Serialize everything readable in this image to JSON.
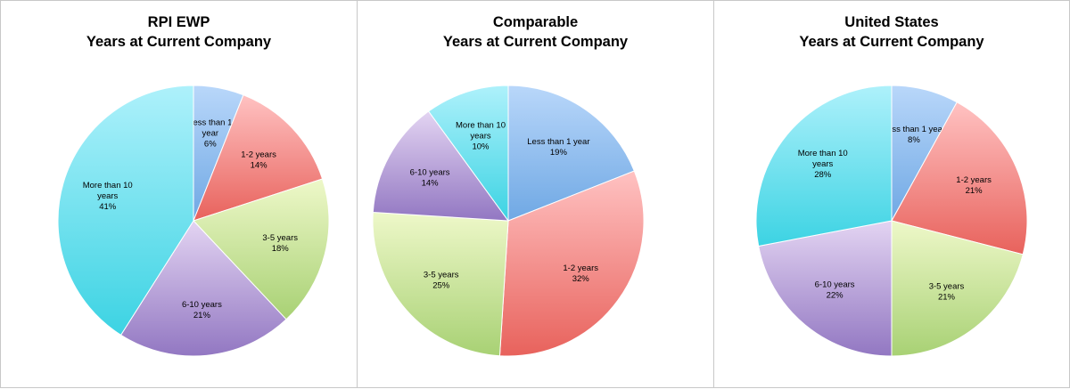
{
  "colors": {
    "less_than_1": [
      "#b9d7fa",
      "#6fa8e4"
    ],
    "y1_2": [
      "#ffc2c2",
      "#e8625c"
    ],
    "y3_5": [
      "#eef8c9",
      "#a8d174"
    ],
    "y6_10": [
      "#e3d4f2",
      "#9277c2"
    ],
    "more_than_10": [
      "#aef1fb",
      "#3cd3e3"
    ]
  },
  "chart_data": [
    {
      "type": "pie",
      "title": [
        "RPI EWP",
        "Years at Current Company"
      ],
      "slices": [
        {
          "key": "less_than_1",
          "label": [
            "Less than 1",
            "year"
          ],
          "pct_label": "6%",
          "value": 6
        },
        {
          "key": "y1_2",
          "label": [
            "1-2 years"
          ],
          "pct_label": "14%",
          "value": 14
        },
        {
          "key": "y3_5",
          "label": [
            "3-5 years"
          ],
          "pct_label": "18%",
          "value": 18
        },
        {
          "key": "y6_10",
          "label": [
            "6-10 years"
          ],
          "pct_label": "21%",
          "value": 21
        },
        {
          "key": "more_than_10",
          "label": [
            "More than 10",
            "years"
          ],
          "pct_label": "41%",
          "value": 41
        }
      ]
    },
    {
      "type": "pie",
      "title": [
        "Comparable",
        "Years at Current Company"
      ],
      "slices": [
        {
          "key": "less_than_1",
          "label": [
            "Less than 1 year"
          ],
          "pct_label": "19%",
          "value": 19
        },
        {
          "key": "y1_2",
          "label": [
            "1-2 years"
          ],
          "pct_label": "32%",
          "value": 32
        },
        {
          "key": "y3_5",
          "label": [
            "3-5 years"
          ],
          "pct_label": "25%",
          "value": 25
        },
        {
          "key": "y6_10",
          "label": [
            "6-10 years"
          ],
          "pct_label": "14%",
          "value": 14
        },
        {
          "key": "more_than_10",
          "label": [
            "More than 10",
            "years"
          ],
          "pct_label": "10%",
          "value": 10
        }
      ]
    },
    {
      "type": "pie",
      "title": [
        "United States",
        "Years at Current Company"
      ],
      "slices": [
        {
          "key": "less_than_1",
          "label": [
            "Less than 1 year"
          ],
          "pct_label": "8%",
          "value": 8
        },
        {
          "key": "y1_2",
          "label": [
            "1-2 years"
          ],
          "pct_label": "21%",
          "value": 21
        },
        {
          "key": "y3_5",
          "label": [
            "3-5 years"
          ],
          "pct_label": "21%",
          "value": 21
        },
        {
          "key": "y6_10",
          "label": [
            "6-10 years"
          ],
          "pct_label": "22%",
          "value": 22
        },
        {
          "key": "more_than_10",
          "label": [
            "More than 10",
            "years"
          ],
          "pct_label": "28%",
          "value": 28
        }
      ]
    }
  ]
}
